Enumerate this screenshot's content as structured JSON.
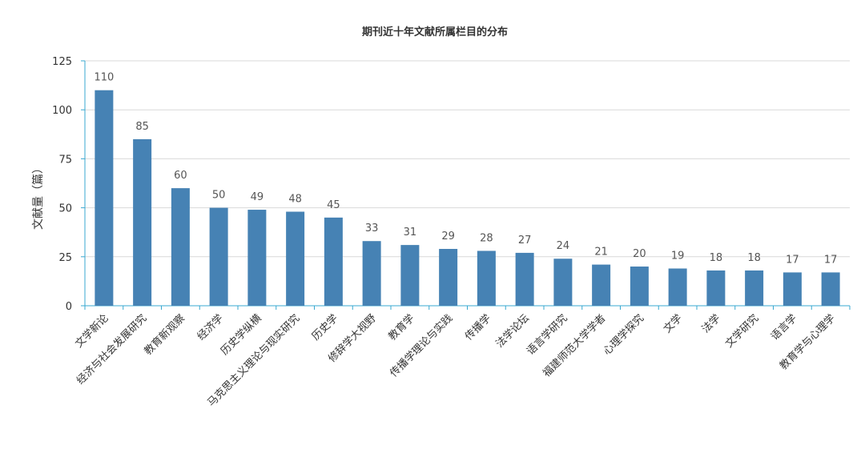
{
  "chart_data": {
    "type": "bar",
    "title": "期刊近十年文献所属栏目的分布",
    "xlabel": "",
    "ylabel": "文献量（篇）",
    "ylim": [
      0,
      125
    ],
    "yticks": [
      0,
      25,
      50,
      75,
      100,
      125
    ],
    "grid": true,
    "legend": "none",
    "bar_color": "#4682b4",
    "axis_color": "#39a8d0",
    "grid_color": "#d9d9d9",
    "categories": [
      "文学新论",
      "经济与社会发展研究",
      "教育新观察",
      "经济学",
      "历史学纵横",
      "马克思主义理论与现实研究",
      "历史学",
      "修辞学大视野",
      "教育学",
      "传播学理论与实践",
      "传播学",
      "法学论坛",
      "语言学研究",
      "福建师范大学学者",
      "心理学探究",
      "文学",
      "法学",
      "文学研究",
      "语言学",
      "教育学与心理学"
    ],
    "values": [
      110,
      85,
      60,
      50,
      49,
      48,
      45,
      33,
      31,
      29,
      28,
      27,
      24,
      21,
      20,
      19,
      18,
      18,
      17,
      17
    ]
  }
}
